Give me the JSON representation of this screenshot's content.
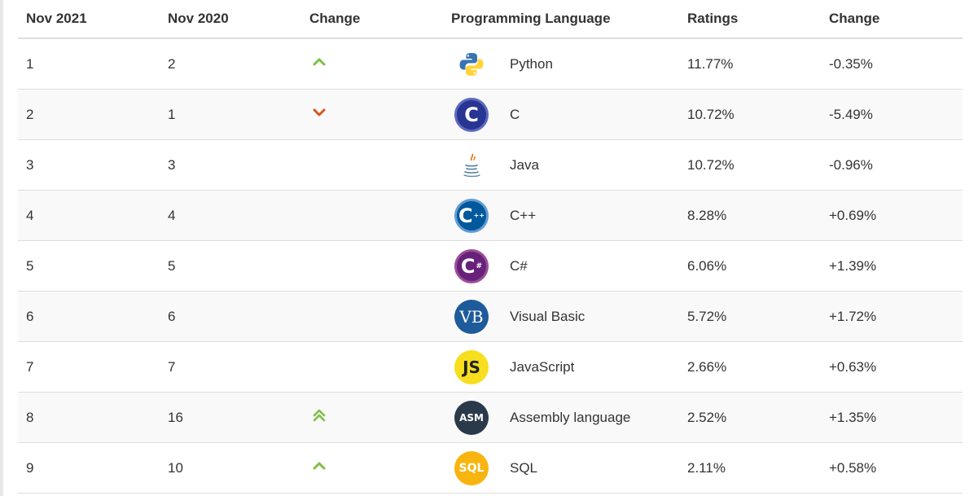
{
  "headers": {
    "nov_2021": "Nov 2021",
    "nov_2020": "Nov 2020",
    "change": "Change",
    "language": "Programming Language",
    "ratings": "Ratings",
    "change_pct": "Change"
  },
  "rows": [
    {
      "rank_2021": "1",
      "rank_2020": "2",
      "trend": "up",
      "trend_icon": "chevron-up-icon",
      "language": "Python",
      "logo": "python-logo-icon",
      "rating": "11.77%",
      "change": "-0.35%"
    },
    {
      "rank_2021": "2",
      "rank_2020": "1",
      "trend": "down",
      "trend_icon": "chevron-down-icon",
      "language": "C",
      "logo": "c-logo-icon",
      "logo_text": "C",
      "rating": "10.72%",
      "change": "-5.49%"
    },
    {
      "rank_2021": "3",
      "rank_2020": "3",
      "trend": "none",
      "language": "Java",
      "logo": "java-logo-icon",
      "rating": "10.72%",
      "change": "-0.96%"
    },
    {
      "rank_2021": "4",
      "rank_2020": "4",
      "trend": "none",
      "language": "C++",
      "logo": "cpp-logo-icon",
      "logo_text": "C",
      "rating": "8.28%",
      "change": "+0.69%"
    },
    {
      "rank_2021": "5",
      "rank_2020": "5",
      "trend": "none",
      "language": "C#",
      "logo": "csharp-logo-icon",
      "logo_text": "C",
      "rating": "6.06%",
      "change": "+1.39%"
    },
    {
      "rank_2021": "6",
      "rank_2020": "6",
      "trend": "none",
      "language": "Visual Basic",
      "logo": "visual-basic-logo-icon",
      "logo_text": "VB",
      "rating": "5.72%",
      "change": "+1.72%"
    },
    {
      "rank_2021": "7",
      "rank_2020": "7",
      "trend": "none",
      "language": "JavaScript",
      "logo": "javascript-logo-icon",
      "logo_text": "JS",
      "rating": "2.66%",
      "change": "+0.63%"
    },
    {
      "rank_2021": "8",
      "rank_2020": "16",
      "trend": "double-up",
      "trend_icon": "double-chevron-up-icon",
      "language": "Assembly language",
      "logo": "assembly-logo-icon",
      "logo_text": "ASM",
      "rating": "2.52%",
      "change": "+1.35%"
    },
    {
      "rank_2021": "9",
      "rank_2020": "10",
      "trend": "up",
      "trend_icon": "chevron-up-icon",
      "language": "SQL",
      "logo": "sql-logo-icon",
      "logo_text": "SQL",
      "rating": "2.11%",
      "change": "+0.58%"
    }
  ],
  "colors": {
    "trend_up": "#7ac143",
    "trend_down": "#d9531e",
    "c_blue": "#283593",
    "cpp_blue": "#00599c",
    "csharp_purple": "#68217a",
    "vb_blue": "#1e5b9a",
    "js_yellow": "#f7df1e",
    "asm_dark": "#2b3a4a",
    "sql_orange": "#f8b50f"
  }
}
